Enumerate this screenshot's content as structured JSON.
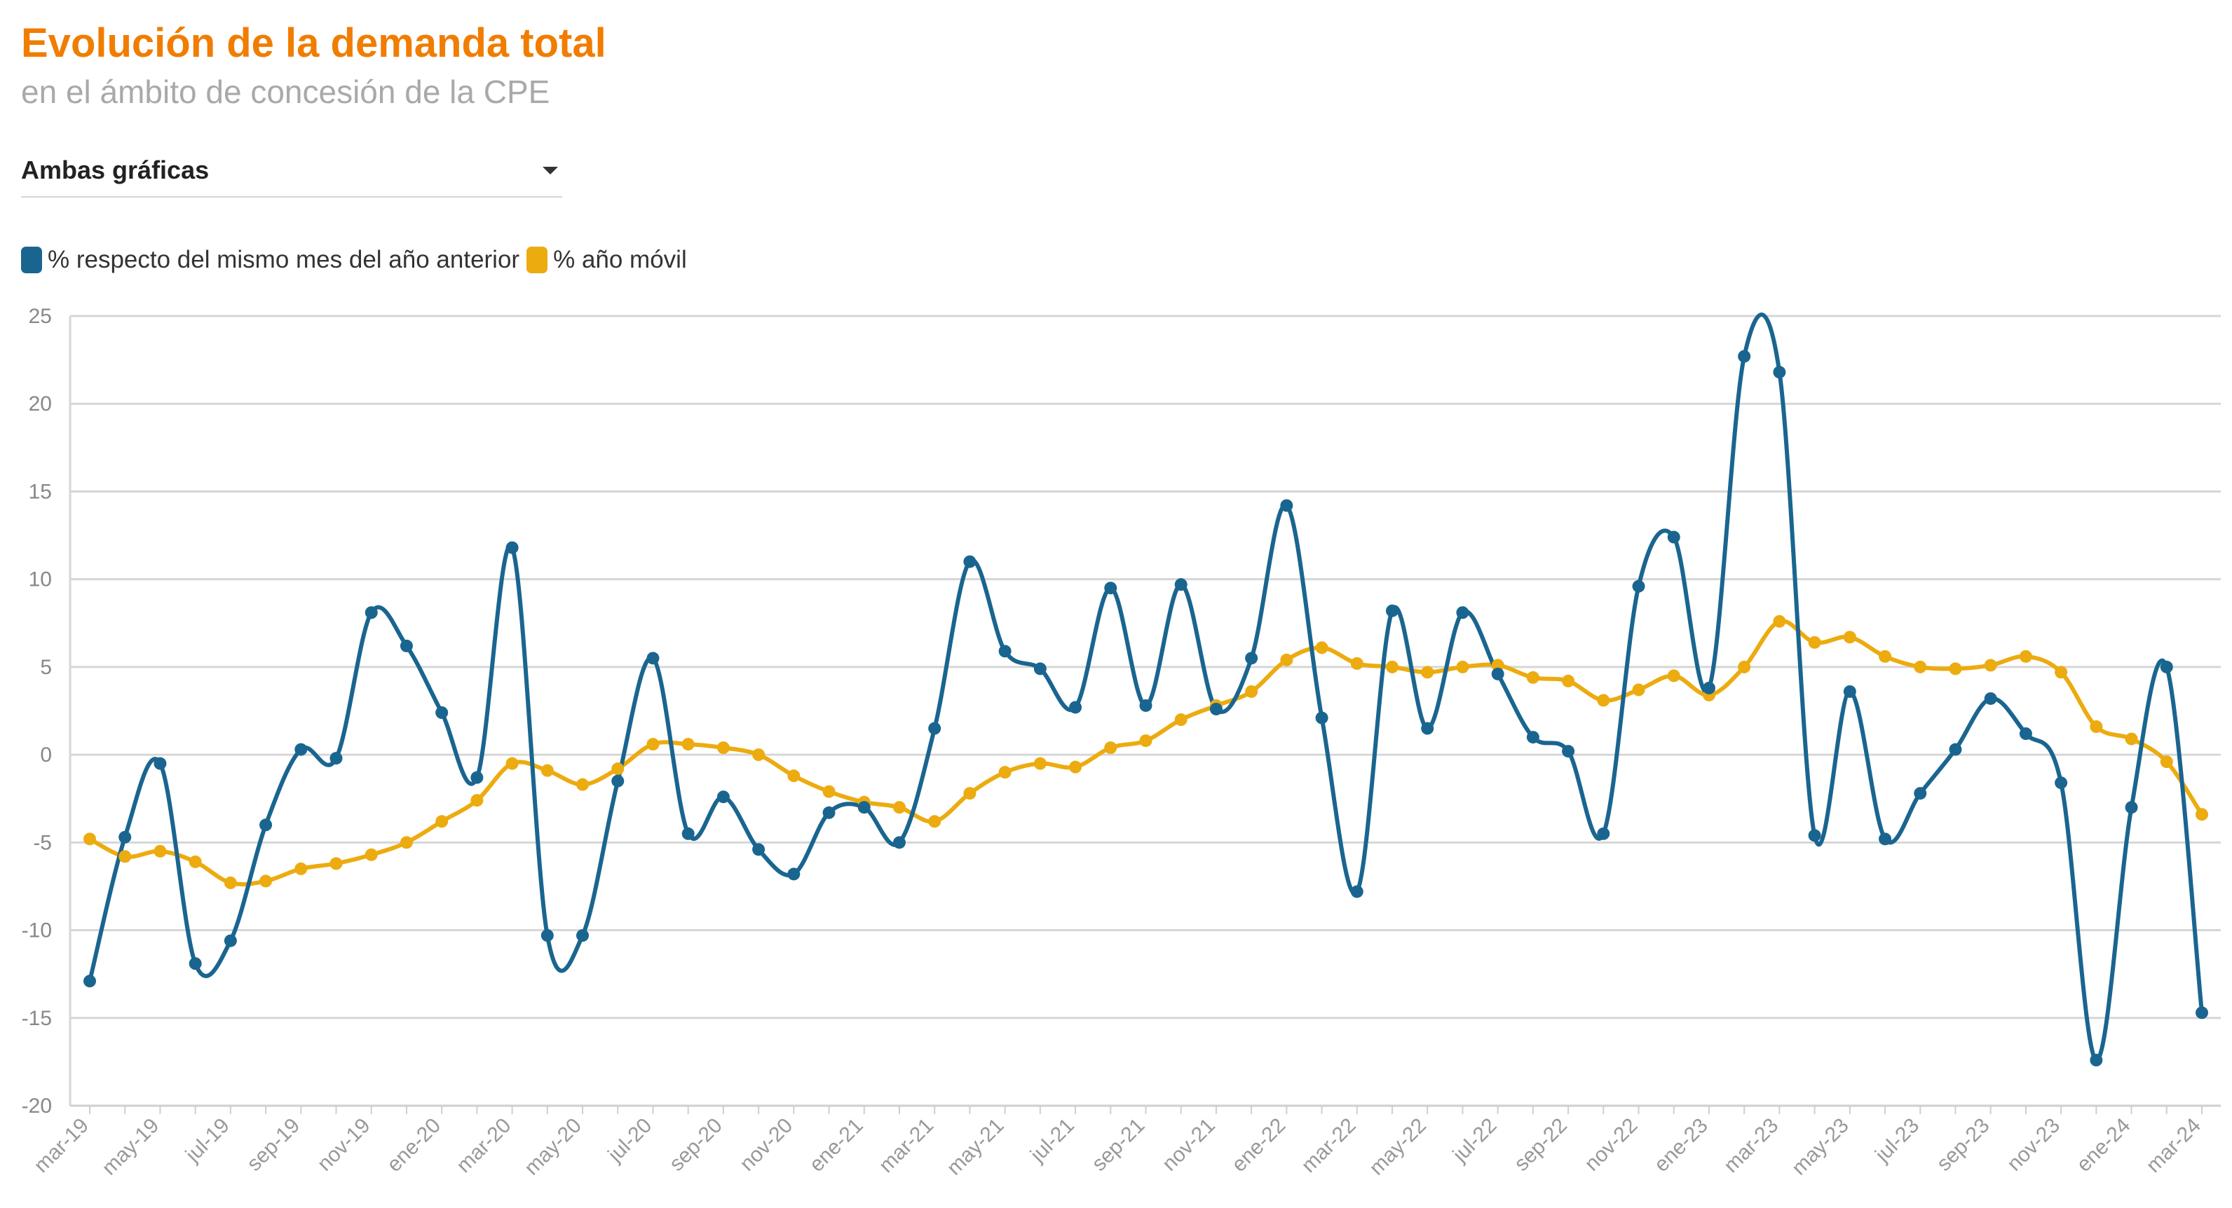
{
  "header": {
    "title": "Evolución de la demanda total",
    "subtitle": "en el ámbito de concesión de la CPE"
  },
  "selector": {
    "value": "Ambas gráficas"
  },
  "chart_data": {
    "type": "line",
    "title": "Evolución de la demanda total",
    "subtitle": "en el ámbito de concesión de la CPE",
    "xlabel": "",
    "ylabel": "",
    "ylim": [
      -20,
      25
    ],
    "yticks": [
      25,
      20,
      15,
      10,
      5,
      0,
      -5,
      -10,
      -15,
      -20
    ],
    "grid": true,
    "legend_position": "top-left",
    "x": [
      "mar-19",
      "abr-19",
      "may-19",
      "jun-19",
      "jul-19",
      "ago-19",
      "sep-19",
      "oct-19",
      "nov-19",
      "dic-19",
      "ene-20",
      "feb-20",
      "mar-20",
      "abr-20",
      "may-20",
      "jun-20",
      "jul-20",
      "ago-20",
      "sep-20",
      "oct-20",
      "nov-20",
      "dic-20",
      "ene-21",
      "feb-21",
      "mar-21",
      "abr-21",
      "may-21",
      "jun-21",
      "jul-21",
      "ago-21",
      "sep-21",
      "oct-21",
      "nov-21",
      "dic-21",
      "ene-22",
      "feb-22",
      "mar-22",
      "abr-22",
      "may-22",
      "jun-22",
      "jul-22",
      "ago-22",
      "sep-22",
      "oct-22",
      "nov-22",
      "dic-22",
      "ene-23",
      "feb-23",
      "mar-23",
      "abr-23",
      "may-23",
      "jun-23",
      "jul-23",
      "ago-23",
      "sep-23",
      "oct-23",
      "nov-23",
      "dic-23",
      "ene-24",
      "feb-24",
      "mar-24"
    ],
    "x_tick_labels": [
      "mar-19",
      "may-19",
      "jul-19",
      "sep-19",
      "nov-19",
      "ene-20",
      "mar-20",
      "may-20",
      "jul-20",
      "sep-20",
      "nov-20",
      "ene-21",
      "mar-21",
      "may-21",
      "jul-21",
      "sep-21",
      "nov-21",
      "ene-22",
      "mar-22",
      "may-22",
      "jul-22",
      "sep-22",
      "nov-22",
      "ene-23",
      "mar-23",
      "may-23",
      "jul-23",
      "sep-23",
      "nov-23",
      "ene-24",
      "mar-24"
    ],
    "series": [
      {
        "name": "% respecto del mismo mes del año anterior",
        "color": "#1a6590",
        "values": [
          -12.9,
          -4.7,
          -0.5,
          -11.9,
          -10.6,
          -4.0,
          0.3,
          -0.2,
          8.1,
          6.2,
          2.4,
          -1.3,
          11.8,
          -10.3,
          -10.3,
          -1.5,
          5.5,
          -4.5,
          -2.4,
          -5.4,
          -6.8,
          -3.3,
          -3.0,
          -5.0,
          1.5,
          11.0,
          5.9,
          4.9,
          2.7,
          9.5,
          2.8,
          9.7,
          2.6,
          5.5,
          14.2,
          2.1,
          -7.8,
          8.2,
          1.5,
          8.1,
          4.6,
          1.0,
          0.2,
          -4.5,
          9.6,
          12.4,
          3.8,
          22.7,
          21.8,
          -4.6,
          3.6,
          -4.8,
          -2.2,
          0.3,
          3.2,
          1.2,
          -1.6,
          -17.4,
          -3.0,
          5.0,
          -14.7
        ]
      },
      {
        "name": "% año móvil",
        "color": "#ecab0f",
        "values": [
          -4.8,
          -5.8,
          -5.5,
          -6.1,
          -7.3,
          -7.2,
          -6.5,
          -6.2,
          -5.7,
          -5.0,
          -3.8,
          -2.6,
          -0.5,
          -0.9,
          -1.7,
          -0.8,
          0.6,
          0.6,
          0.4,
          0.0,
          -1.2,
          -2.1,
          -2.7,
          -3.0,
          -3.8,
          -2.2,
          -1.0,
          -0.5,
          -0.7,
          0.4,
          0.8,
          2.0,
          2.8,
          3.6,
          5.4,
          6.1,
          5.2,
          5.0,
          4.7,
          5.0,
          5.1,
          4.4,
          4.2,
          3.1,
          3.7,
          4.5,
          3.4,
          5.0,
          7.6,
          6.4,
          6.7,
          5.6,
          5.0,
          4.9,
          5.1,
          5.6,
          4.7,
          1.6,
          0.9,
          -0.4,
          -3.4
        ]
      }
    ]
  }
}
